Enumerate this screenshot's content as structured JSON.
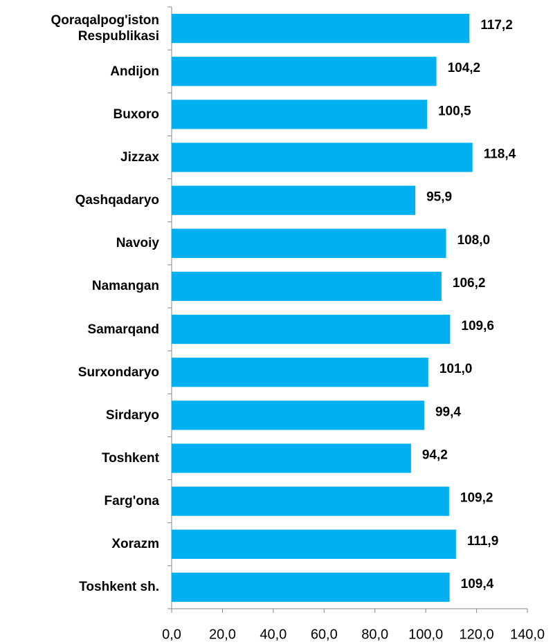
{
  "chart_data": {
    "type": "bar",
    "orientation": "horizontal",
    "categories": [
      "Qoraqalpog'iston Respublikasi",
      "Andijon",
      "Buxoro",
      "Jizzax",
      "Qashqadaryo",
      "Navoiy",
      "Namangan",
      "Samarqand",
      "Surxondaryo",
      "Sirdaryo",
      "Toshkent",
      "Farg'ona",
      "Xorazm",
      "Toshkent sh."
    ],
    "values": [
      117.2,
      104.2,
      100.5,
      118.4,
      95.9,
      108.0,
      106.2,
      109.6,
      101.0,
      99.4,
      94.2,
      109.2,
      111.9,
      109.4
    ],
    "value_labels": [
      "117,2",
      "104,2",
      "100,5",
      "118,4",
      "95,9",
      "108,0",
      "106,2",
      "109,6",
      "101,0",
      "99,4",
      "94,2",
      "109,2",
      "111,9",
      "109,4"
    ],
    "color": "#00b0f0",
    "xlim": [
      0,
      140
    ],
    "xticks": [
      {
        "value": 0,
        "label": "0,0"
      },
      {
        "value": 20,
        "label": "20,0"
      },
      {
        "value": 40,
        "label": "40,0"
      },
      {
        "value": 60,
        "label": "60,0"
      },
      {
        "value": 80,
        "label": "80,0"
      },
      {
        "value": 100,
        "label": "100,0"
      },
      {
        "value": 120,
        "label": "120,0"
      },
      {
        "value": 140,
        "label": "140,0"
      }
    ],
    "grid": false
  }
}
